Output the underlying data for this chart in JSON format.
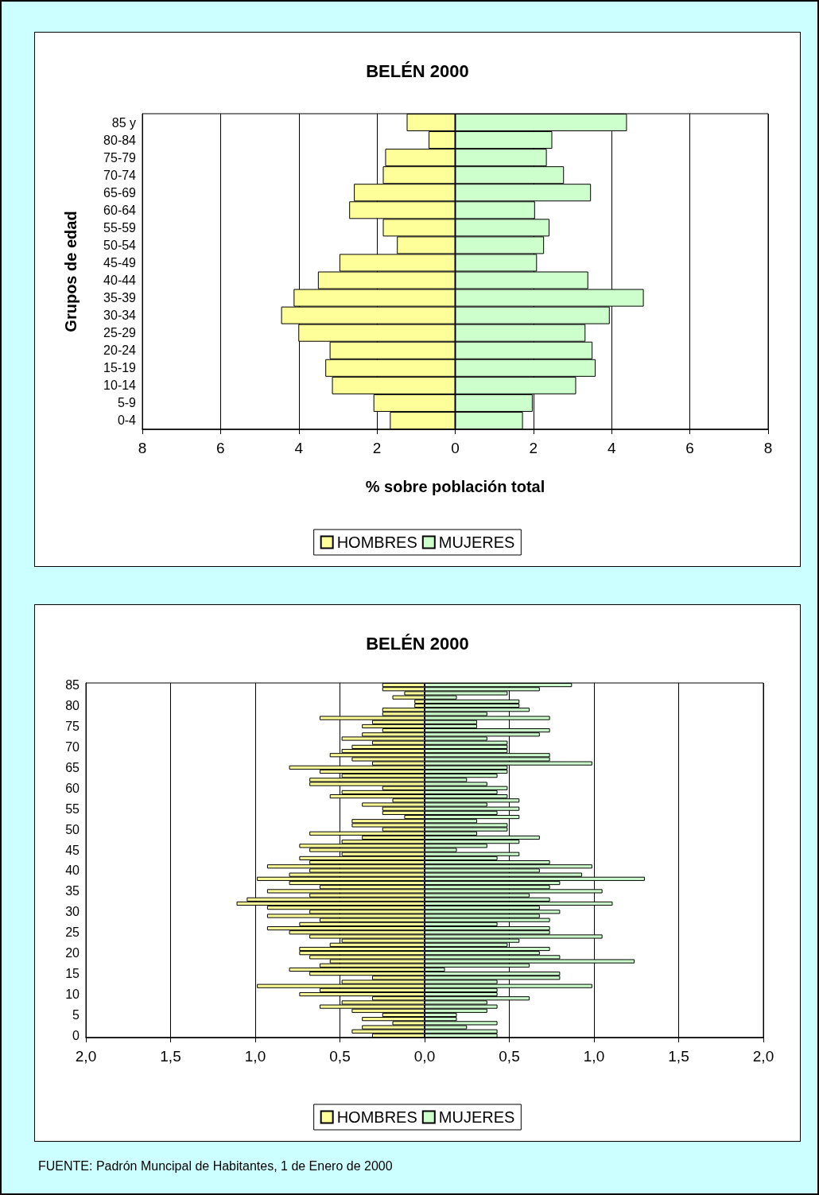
{
  "chart_data": [
    {
      "type": "bar",
      "orientation": "horizontal",
      "title": "BELÉN 2000",
      "xlabel": "% sobre población total",
      "ylabel": "Grupos de edad",
      "categories": [
        "85 y",
        "80-84",
        "75-79",
        "70-74",
        "65-69",
        "60-64",
        "55-59",
        "50-54",
        "45-49",
        "40-44",
        "35-39",
        "30-34",
        "25-29",
        "20-24",
        "15-19",
        "10-14",
        "5-9",
        "0-4"
      ],
      "series": [
        {
          "name": "HOMBRES",
          "color": "#ffff99",
          "values": [
            -1.24,
            -0.68,
            -1.79,
            -1.85,
            -2.59,
            -2.71,
            -1.85,
            -1.49,
            -2.96,
            -3.51,
            -4.13,
            -4.45,
            -4.01,
            -3.21,
            -3.32,
            -3.15,
            -2.09,
            -1.67
          ]
        },
        {
          "name": "MUJERES",
          "color": "#ccffcc",
          "values": [
            4.39,
            2.48,
            2.34,
            2.78,
            3.47,
            2.04,
            2.41,
            2.27,
            2.09,
            3.4,
            4.82,
            3.95,
            3.33,
            3.51,
            3.59,
            3.09,
            1.98,
            1.73
          ]
        }
      ],
      "xlim": [
        -8,
        8
      ],
      "xticks": [
        {
          "value": -8,
          "label": "8"
        },
        {
          "value": -6,
          "label": "6"
        },
        {
          "value": -4,
          "label": "4"
        },
        {
          "value": -2,
          "label": "2"
        },
        0,
        2,
        4,
        6,
        8
      ],
      "grid": "x",
      "legend": "bottom",
      "stacked": true
    },
    {
      "type": "bar",
      "orientation": "horizontal",
      "title": "BELÉN 2000",
      "categories": [
        "85",
        null,
        null,
        null,
        null,
        "80",
        null,
        null,
        null,
        null,
        "75",
        null,
        null,
        null,
        null,
        "70",
        null,
        null,
        null,
        null,
        "65",
        null,
        null,
        null,
        null,
        "60",
        null,
        null,
        null,
        null,
        "55",
        null,
        null,
        null,
        null,
        "50",
        null,
        null,
        null,
        null,
        "45",
        null,
        null,
        null,
        null,
        "40",
        null,
        null,
        null,
        null,
        "35",
        null,
        null,
        null,
        null,
        "30",
        null,
        null,
        null,
        null,
        "25",
        null,
        null,
        null,
        null,
        "20",
        null,
        null,
        null,
        null,
        "15",
        null,
        null,
        null,
        null,
        "10",
        null,
        null,
        null,
        null,
        "5",
        null,
        null,
        null,
        null,
        "0"
      ],
      "series": [
        {
          "name": "HOMBRES",
          "color": "#ffff99",
          "values": [
            -0.25,
            -0.25,
            -0.12,
            -0.19,
            -0.06,
            -0.06,
            -0.25,
            -0.25,
            -0.62,
            -0.31,
            -0.37,
            -0.25,
            -0.37,
            -0.49,
            -0.31,
            -0.43,
            -0.49,
            -0.56,
            -0.43,
            -0.31,
            -0.8,
            -0.62,
            -0.49,
            -0.68,
            -0.68,
            -0.25,
            -0.49,
            -0.56,
            -0.19,
            -0.37,
            -0.25,
            -0.25,
            -0.12,
            -0.43,
            -0.43,
            -0.25,
            -0.68,
            -0.37,
            -0.49,
            -0.74,
            -0.68,
            -0.49,
            -0.74,
            -0.68,
            -0.93,
            -0.68,
            -0.8,
            -0.99,
            -0.8,
            -0.62,
            -0.93,
            -0.68,
            -1.05,
            -1.11,
            -0.93,
            -0.68,
            -0.93,
            -0.62,
            -0.74,
            -0.93,
            -0.8,
            -0.68,
            -0.49,
            -0.56,
            -0.74,
            -0.74,
            -0.68,
            -0.56,
            -0.62,
            -0.8,
            -0.68,
            -0.31,
            -0.49,
            -0.99,
            -0.62,
            -0.74,
            -0.31,
            -0.49,
            -0.62,
            -0.43,
            -0.25,
            -0.37,
            -0.19,
            -0.37,
            -0.43,
            -0.31
          ]
        },
        {
          "name": "MUJERES",
          "color": "#ccffcc",
          "values": [
            0.87,
            0.68,
            0.49,
            0.19,
            0.56,
            0.56,
            0.62,
            0.37,
            0.74,
            0.31,
            0.31,
            0.74,
            0.68,
            0.37,
            0.49,
            0.49,
            0.49,
            0.74,
            0.74,
            0.99,
            0.49,
            0.49,
            0.43,
            0.25,
            0.37,
            0.49,
            0.43,
            0.49,
            0.56,
            0.37,
            0.56,
            0.43,
            0.56,
            0.31,
            0.49,
            0.49,
            0.31,
            0.68,
            0.56,
            0.37,
            0.19,
            0.56,
            0.43,
            0.74,
            0.99,
            0.68,
            0.93,
            1.3,
            0.8,
            0.74,
            1.05,
            0.62,
            0.74,
            1.11,
            0.68,
            0.8,
            0.68,
            0.74,
            0.43,
            0.74,
            0.74,
            1.05,
            0.56,
            0.49,
            0.74,
            0.68,
            0.8,
            1.24,
            0.62,
            0.12,
            0.8,
            0.8,
            0.43,
            0.99,
            0.43,
            0.43,
            0.62,
            0.37,
            0.43,
            0.37,
            0.19,
            0.19,
            0.43,
            0.25,
            0.43,
            0.43
          ]
        }
      ],
      "xlim": [
        -2,
        2
      ],
      "xticks": [
        {
          "value": -2,
          "label": "2,0"
        },
        {
          "value": -1.5,
          "label": "1,5"
        },
        {
          "value": -1,
          "label": "1,0"
        },
        {
          "value": -0.5,
          "label": "0,5"
        },
        {
          "value": 0,
          "label": "0,0"
        },
        {
          "value": 0.5,
          "label": "0,5"
        },
        {
          "value": 1,
          "label": "1,0"
        },
        {
          "value": 1.5,
          "label": "1,5"
        },
        {
          "value": 2,
          "label": "2,0"
        }
      ],
      "grid": "x",
      "legend": "bottom",
      "stacked": true,
      "annotations": [
        "FUENTE: Padrón Muncipal de Habitantes, 1 de Enero de 2000"
      ]
    }
  ]
}
